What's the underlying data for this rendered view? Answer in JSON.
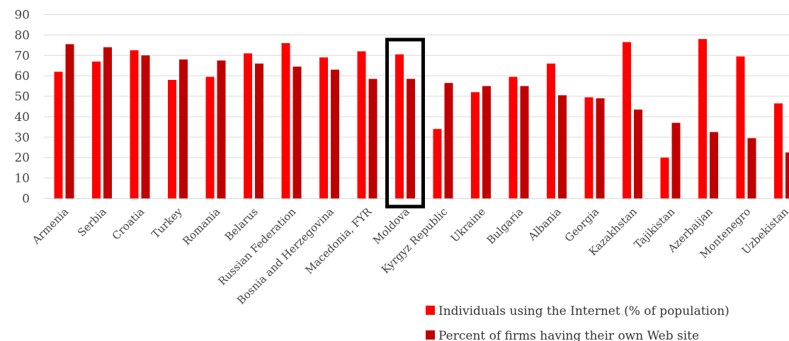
{
  "chart_data": {
    "type": "bar",
    "categories": [
      "Armenia",
      "Serbia",
      "Croatia",
      "Turkey",
      "Romania",
      "Belarus",
      "Russian Federation",
      "Bosnia and Herzegovina",
      "Macedonia, FYR",
      "Moldova",
      "Kyrgyz Republic",
      "Ukraine",
      "Bulgaria",
      "Albania",
      "Georgia",
      "Kazakhstan",
      "Tajikistan",
      "Azerbaijan",
      "Montenegro",
      "Uzbekistan"
    ],
    "series": [
      {
        "name": "Individuals using the Internet (% of population)",
        "color": "#ff0000",
        "values": [
          62,
          67,
          72.5,
          58,
          59.5,
          71,
          76,
          69,
          72,
          70.5,
          34,
          52,
          59.5,
          66,
          49.5,
          76.5,
          20,
          78,
          69.5,
          46.5
        ]
      },
      {
        "name": "Percent of firms having their own Web site",
        "color": "#c00000",
        "values": [
          75.5,
          74,
          70,
          68,
          67.5,
          66,
          64.5,
          63,
          58.5,
          58.5,
          56.5,
          55,
          55,
          50.5,
          49,
          43.5,
          37,
          32.5,
          29.5,
          22.5
        ]
      }
    ],
    "yticks": [
      0,
      10,
      20,
      30,
      40,
      50,
      60,
      70,
      80,
      90
    ],
    "ylim": [
      0,
      90
    ],
    "grid": true,
    "legend": "bottom-right",
    "highlight": "Moldova",
    "title": "",
    "xlabel": "",
    "ylabel": ""
  }
}
